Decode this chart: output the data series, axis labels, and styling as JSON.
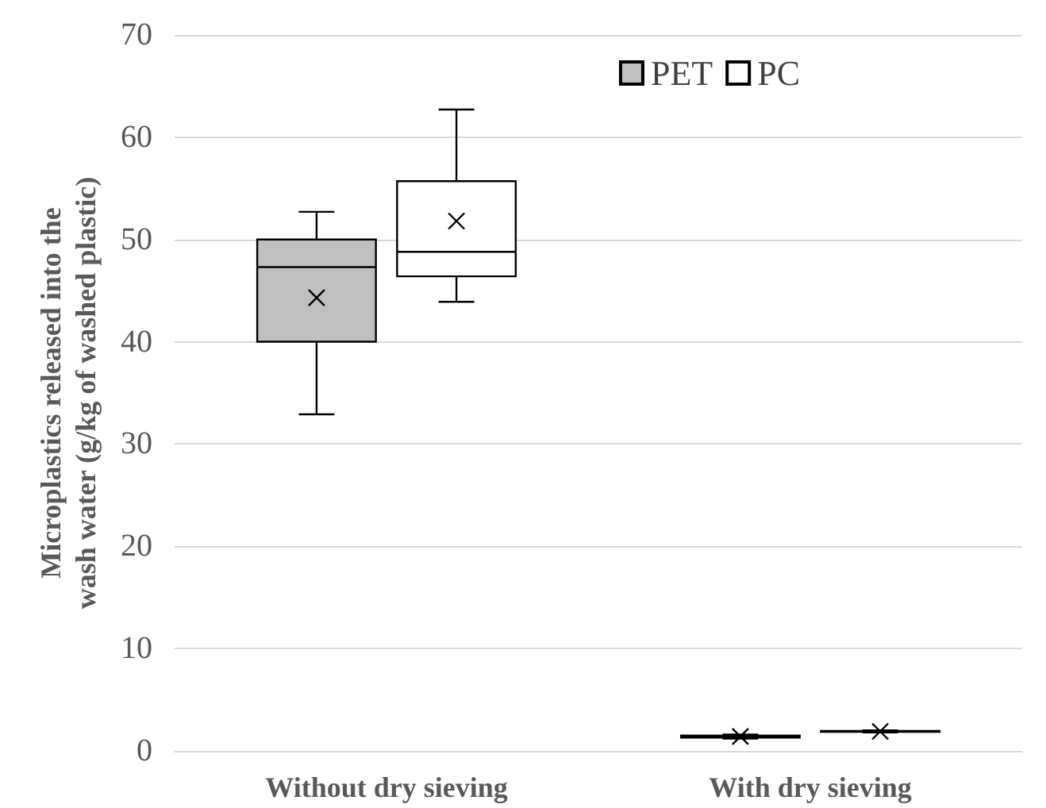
{
  "chart_data": {
    "type": "box",
    "ylabel": "Microplastics released into the wash water (g/kg of washed plastic)",
    "categories": [
      "Without dry sieving",
      "With dry sieving"
    ],
    "series": [
      {
        "name": "PET",
        "color": "#bfbfbf",
        "boxes": [
          {
            "low": 32.9,
            "q1": 40,
            "median": 47.3,
            "q3": 50,
            "high": 52.7,
            "mean": 44.3
          },
          {
            "low": 1.2,
            "q1": 1.3,
            "median": 1.4,
            "q3": 1.5,
            "high": 1.6,
            "mean": 1.4
          }
        ]
      },
      {
        "name": "PC",
        "color": "#ffffff",
        "boxes": [
          {
            "low": 43.9,
            "q1": 46.4,
            "median": 48.8,
            "q3": 55.7,
            "high": 62.7,
            "mean": 51.8
          },
          {
            "low": 1.8,
            "q1": 1.85,
            "median": 1.9,
            "q3": 1.95,
            "high": 2.0,
            "mean": 1.9
          }
        ]
      }
    ],
    "ylim": [
      0,
      70
    ],
    "yticks": [
      0,
      10,
      20,
      30,
      40,
      50,
      60,
      70
    ],
    "grid": "y",
    "legend": "top right"
  }
}
